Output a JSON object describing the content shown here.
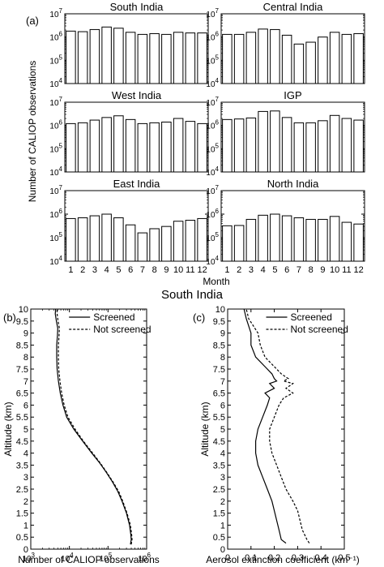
{
  "figure": {
    "panel_a_label": "(a)",
    "panel_b_label": "(b)",
    "panel_c_label": "(c)",
    "top_ylabel": "Number of CALIOP observations",
    "top_xlabel": "Month",
    "bottom_title": "South India"
  },
  "chart_data": [
    {
      "type": "bar",
      "title": "South India",
      "yscale": "log",
      "ylim": [
        10000,
        10000000
      ],
      "categories": [
        "1",
        "2",
        "3",
        "4",
        "5",
        "6",
        "7",
        "8",
        "9",
        "10",
        "11",
        "12"
      ],
      "values": [
        1800000,
        1700000,
        2100000,
        2700000,
        2400000,
        1600000,
        1300000,
        1400000,
        1300000,
        1600000,
        1500000,
        1500000
      ]
    },
    {
      "type": "bar",
      "title": "Central India",
      "yscale": "log",
      "ylim": [
        10000,
        10000000
      ],
      "categories": [
        "1",
        "2",
        "3",
        "4",
        "5",
        "6",
        "7",
        "8",
        "9",
        "10",
        "11",
        "12"
      ],
      "values": [
        1300000,
        1300000,
        1600000,
        2200000,
        2100000,
        1200000,
        500000,
        600000,
        1000000,
        1600000,
        1300000,
        1400000
      ]
    },
    {
      "type": "bar",
      "title": "West India",
      "yscale": "log",
      "ylim": [
        10000,
        10000000
      ],
      "categories": [
        "1",
        "2",
        "3",
        "4",
        "5",
        "6",
        "7",
        "8",
        "9",
        "10",
        "11",
        "12"
      ],
      "values": [
        1200000,
        1300000,
        1700000,
        2200000,
        2600000,
        1800000,
        1200000,
        1300000,
        1400000,
        2000000,
        1500000,
        1200000
      ]
    },
    {
      "type": "bar",
      "title": "IGP",
      "yscale": "log",
      "ylim": [
        10000,
        10000000
      ],
      "categories": [
        "1",
        "2",
        "3",
        "4",
        "5",
        "6",
        "7",
        "8",
        "9",
        "10",
        "11",
        "12"
      ],
      "values": [
        1800000,
        1900000,
        2100000,
        4000000,
        4200000,
        2200000,
        1300000,
        1300000,
        1600000,
        2700000,
        2000000,
        1700000
      ]
    },
    {
      "type": "bar",
      "title": "East India",
      "yscale": "log",
      "ylim": [
        10000,
        10000000
      ],
      "categories": [
        "1",
        "2",
        "3",
        "4",
        "5",
        "6",
        "7",
        "8",
        "9",
        "10",
        "11",
        "12"
      ],
      "values": [
        650000,
        700000,
        850000,
        1000000,
        700000,
        350000,
        160000,
        240000,
        300000,
        500000,
        550000,
        650000
      ]
    },
    {
      "type": "bar",
      "title": "North India",
      "yscale": "log",
      "ylim": [
        10000,
        10000000
      ],
      "categories": [
        "1",
        "2",
        "3",
        "4",
        "5",
        "6",
        "7",
        "8",
        "9",
        "10",
        "11",
        "12"
      ],
      "values": [
        320000,
        330000,
        600000,
        900000,
        1000000,
        850000,
        700000,
        600000,
        600000,
        800000,
        450000,
        380000
      ]
    },
    {
      "type": "line",
      "xscale": "log",
      "xlim": [
        1000,
        1000000
      ],
      "ylim": [
        0,
        10
      ],
      "xlabel": "Number of CALIOP observations",
      "ylabel": "Altitude (km)",
      "xticks": [
        "10^3",
        "10^4",
        "10^5",
        "10^6"
      ],
      "yticks": [
        "0",
        "0.5",
        "1",
        "1.5",
        "2",
        "2.5",
        "3",
        "3.5",
        "4",
        "4.5",
        "5",
        "5.5",
        "6",
        "6.5",
        "7",
        "7.5",
        "8",
        "8.5",
        "9",
        "9.5",
        "10"
      ],
      "legend": "top-right",
      "series": [
        {
          "name": "Screened",
          "style": "solid",
          "x": [
            380000,
            400000,
            390000,
            360000,
            300000,
            230000,
            180000,
            130000,
            90000,
            60000,
            38000,
            22000,
            13000,
            8500,
            6800,
            5800,
            5200,
            4800,
            4700,
            4700,
            4900,
            5000,
            4600,
            4300,
            4400
          ],
          "y": [
            0.2,
            0.4,
            0.6,
            1.0,
            1.5,
            2.0,
            2.4,
            2.8,
            3.2,
            3.6,
            4.0,
            4.5,
            5.0,
            5.5,
            6.0,
            6.5,
            7.0,
            7.5,
            8.0,
            8.5,
            8.9,
            9.2,
            9.5,
            9.8,
            10.0
          ]
        },
        {
          "name": "Not screened",
          "style": "dashed",
          "x": [
            400000,
            420000,
            410000,
            380000,
            310000,
            240000,
            190000,
            135000,
            93000,
            62000,
            40000,
            23000,
            14000,
            9200,
            7300,
            6300,
            5700,
            5300,
            5200,
            5200,
            5400,
            5500,
            5100,
            4800,
            4800
          ],
          "y": [
            0.2,
            0.4,
            0.6,
            1.0,
            1.5,
            2.0,
            2.4,
            2.8,
            3.2,
            3.6,
            4.0,
            4.5,
            5.0,
            5.5,
            6.0,
            6.5,
            7.0,
            7.5,
            8.0,
            8.5,
            8.9,
            9.2,
            9.5,
            9.8,
            10.0
          ]
        }
      ]
    },
    {
      "type": "line",
      "xlim": [
        0,
        0.5
      ],
      "ylim": [
        0,
        10
      ],
      "xlabel": "Aerosol extinction coefficient (km⁻¹)",
      "ylabel": "Altitude (km)",
      "xticks": [
        "0",
        "0.1",
        "0.2",
        "0.3",
        "0.4",
        "0.5"
      ],
      "yticks": [
        "0",
        "0.5",
        "1",
        "1.5",
        "2",
        "2.5",
        "3",
        "3.5",
        "4",
        "4.5",
        "5",
        "5.5",
        "6",
        "6.5",
        "7",
        "7.5",
        "8",
        "8.5",
        "9",
        "9.5",
        "10"
      ],
      "legend": "top-right",
      "series": [
        {
          "name": "Screened",
          "style": "solid",
          "x": [
            0.25,
            0.23,
            0.22,
            0.21,
            0.2,
            0.19,
            0.17,
            0.15,
            0.13,
            0.12,
            0.12,
            0.13,
            0.15,
            0.17,
            0.18,
            0.16,
            0.2,
            0.18,
            0.21,
            0.2,
            0.19,
            0.16,
            0.12,
            0.1,
            0.1,
            0.09,
            0.08,
            0.075,
            0.07
          ],
          "y": [
            0.25,
            0.4,
            0.8,
            1.2,
            1.6,
            2.0,
            2.5,
            3.0,
            3.5,
            4.0,
            4.5,
            5.0,
            5.5,
            6.0,
            6.3,
            6.5,
            6.7,
            6.9,
            7.0,
            7.1,
            7.3,
            7.6,
            8.0,
            8.5,
            9.0,
            9.3,
            9.6,
            9.8,
            10.0
          ]
        },
        {
          "name": "Not screened",
          "style": "dashed",
          "x": [
            0.35,
            0.34,
            0.32,
            0.31,
            0.3,
            0.28,
            0.25,
            0.23,
            0.21,
            0.19,
            0.18,
            0.18,
            0.2,
            0.22,
            0.24,
            0.28,
            0.25,
            0.28,
            0.24,
            0.26,
            0.23,
            0.2,
            0.16,
            0.14,
            0.13,
            0.11,
            0.09,
            0.085,
            0.08
          ],
          "y": [
            0.25,
            0.4,
            0.8,
            1.2,
            1.6,
            2.0,
            2.5,
            3.0,
            3.5,
            4.0,
            4.5,
            5.0,
            5.5,
            6.0,
            6.3,
            6.5,
            6.7,
            6.9,
            7.0,
            7.1,
            7.3,
            7.6,
            8.0,
            8.5,
            9.0,
            9.3,
            9.6,
            9.8,
            10.0
          ]
        }
      ]
    }
  ]
}
